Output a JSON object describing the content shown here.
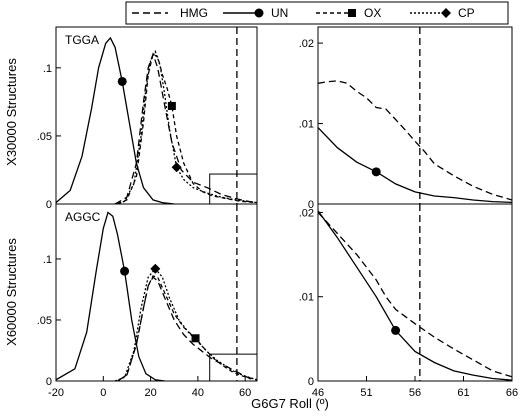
{
  "legend": [
    {
      "name": "HMG",
      "dash": "7,4",
      "marker": "none"
    },
    {
      "name": "UN",
      "dash": "",
      "marker": "circle"
    },
    {
      "name": "OX",
      "dash": "4,3",
      "marker": "square"
    },
    {
      "name": "CP",
      "dash": "2,2",
      "marker": "diamond"
    }
  ],
  "xlabel": "G6G7 Roll (º)",
  "ylabel_top": "X30000 Structures",
  "ylabel_bottom": "X60000 Structures",
  "vline_x": 56.5,
  "chart_data": [
    {
      "id": "top-left",
      "type": "line",
      "label": "TGGA",
      "xlim": [
        -20,
        65
      ],
      "ylim": [
        0,
        0.13
      ],
      "xticks": [],
      "yticks": [
        0,
        0.05,
        0.1
      ],
      "inset_box": {
        "x": [
          45,
          65
        ],
        "y": [
          0,
          0.022
        ]
      },
      "series": [
        {
          "name": "HMG",
          "marker_at": null,
          "points": [
            [
              5,
              0
            ],
            [
              10,
              0.005
            ],
            [
              14,
              0.03
            ],
            [
              17,
              0.075
            ],
            [
              19,
              0.1
            ],
            [
              21,
              0.11
            ],
            [
              23,
              0.1
            ],
            [
              26,
              0.072
            ],
            [
              29,
              0.045
            ],
            [
              33,
              0.025
            ],
            [
              38,
              0.016
            ],
            [
              44,
              0.012
            ],
            [
              50,
              0.007
            ],
            [
              56,
              0.004
            ],
            [
              61,
              0.002
            ],
            [
              65,
              0.001
            ]
          ]
        },
        {
          "name": "UN",
          "marker_at": [
            8,
            0.09
          ],
          "points": [
            [
              -20,
              0.001
            ],
            [
              -14,
              0.01
            ],
            [
              -9,
              0.035
            ],
            [
              -5,
              0.07
            ],
            [
              -2,
              0.1
            ],
            [
              1,
              0.118
            ],
            [
              3,
              0.122
            ],
            [
              5,
              0.115
            ],
            [
              8,
              0.09
            ],
            [
              11,
              0.06
            ],
            [
              14,
              0.03
            ],
            [
              17,
              0.012
            ],
            [
              21,
              0.003
            ],
            [
              25,
              0.001
            ],
            [
              30,
              0
            ]
          ]
        },
        {
          "name": "OX",
          "marker_at": [
            29,
            0.072
          ],
          "points": [
            [
              6,
              0
            ],
            [
              10,
              0.003
            ],
            [
              14,
              0.02
            ],
            [
              17,
              0.06
            ],
            [
              19,
              0.095
            ],
            [
              21,
              0.11
            ],
            [
              23,
              0.108
            ],
            [
              25,
              0.095
            ],
            [
              27,
              0.085
            ],
            [
              29,
              0.072
            ],
            [
              31,
              0.05
            ],
            [
              34,
              0.03
            ],
            [
              38,
              0.015
            ],
            [
              42,
              0.009
            ],
            [
              46,
              0.006
            ],
            [
              52,
              0.004
            ],
            [
              58,
              0.002
            ],
            [
              65,
              0.001
            ]
          ]
        },
        {
          "name": "CP",
          "marker_at": [
            31,
            0.027
          ],
          "points": [
            [
              5,
              0
            ],
            [
              9,
              0.002
            ],
            [
              13,
              0.015
            ],
            [
              16,
              0.05
            ],
            [
              18,
              0.085
            ],
            [
              20,
              0.105
            ],
            [
              22,
              0.112
            ],
            [
              24,
              0.102
            ],
            [
              26,
              0.08
            ],
            [
              28,
              0.055
            ],
            [
              31,
              0.027
            ],
            [
              34,
              0.018
            ],
            [
              38,
              0.012
            ],
            [
              44,
              0.008
            ],
            [
              50,
              0.005
            ],
            [
              56,
              0.003
            ],
            [
              61,
              0.002
            ],
            [
              65,
              0.001
            ]
          ]
        }
      ]
    },
    {
      "id": "bottom-left",
      "type": "line",
      "label": "AGGC",
      "xlim": [
        -20,
        65
      ],
      "ylim": [
        0,
        0.145
      ],
      "xticks": [
        -20,
        0,
        20,
        40,
        60
      ],
      "yticks": [
        0,
        0.05,
        0.1
      ],
      "inset_box": {
        "x": [
          45,
          65
        ],
        "y": [
          0,
          0.022
        ]
      },
      "series": [
        {
          "name": "HMG",
          "marker_at": null,
          "points": [
            [
              6,
              0
            ],
            [
              10,
              0.005
            ],
            [
              14,
              0.03
            ],
            [
              17,
              0.06
            ],
            [
              19,
              0.078
            ],
            [
              21,
              0.085
            ],
            [
              23,
              0.082
            ],
            [
              26,
              0.068
            ],
            [
              30,
              0.05
            ],
            [
              34,
              0.038
            ],
            [
              38,
              0.03
            ],
            [
              42,
              0.024
            ],
            [
              46,
              0.018
            ],
            [
              50,
              0.014
            ],
            [
              54,
              0.01
            ],
            [
              58,
              0.006
            ],
            [
              62,
              0.002
            ],
            [
              65,
              0.001
            ]
          ]
        },
        {
          "name": "UN",
          "marker_at": [
            9,
            0.09
          ],
          "points": [
            [
              -20,
              0.001
            ],
            [
              -12,
              0.01
            ],
            [
              -7,
              0.04
            ],
            [
              -3,
              0.09
            ],
            [
              0,
              0.125
            ],
            [
              2,
              0.138
            ],
            [
              4,
              0.135
            ],
            [
              6,
              0.12
            ],
            [
              9,
              0.09
            ],
            [
              12,
              0.05
            ],
            [
              15,
              0.02
            ],
            [
              18,
              0.006
            ],
            [
              22,
              0.001
            ],
            [
              26,
              0
            ]
          ]
        },
        {
          "name": "OX",
          "marker_at": [
            39,
            0.035
          ],
          "points": [
            [
              6,
              0
            ],
            [
              10,
              0.005
            ],
            [
              14,
              0.03
            ],
            [
              17,
              0.06
            ],
            [
              19,
              0.078
            ],
            [
              21,
              0.086
            ],
            [
              23,
              0.085
            ],
            [
              26,
              0.072
            ],
            [
              30,
              0.055
            ],
            [
              34,
              0.044
            ],
            [
              39,
              0.035
            ],
            [
              43,
              0.026
            ],
            [
              47,
              0.018
            ],
            [
              51,
              0.012
            ],
            [
              55,
              0.007
            ],
            [
              59,
              0.004
            ],
            [
              65,
              0.001
            ]
          ]
        },
        {
          "name": "CP",
          "marker_at": [
            22,
            0.092
          ],
          "points": [
            [
              5,
              0
            ],
            [
              9,
              0.003
            ],
            [
              13,
              0.025
            ],
            [
              16,
              0.06
            ],
            [
              19,
              0.085
            ],
            [
              22,
              0.092
            ],
            [
              25,
              0.085
            ],
            [
              28,
              0.068
            ],
            [
              32,
              0.05
            ],
            [
              36,
              0.04
            ],
            [
              40,
              0.032
            ],
            [
              44,
              0.024
            ],
            [
              48,
              0.017
            ],
            [
              52,
              0.012
            ],
            [
              56,
              0.007
            ],
            [
              60,
              0.004
            ],
            [
              65,
              0.001
            ]
          ]
        }
      ]
    },
    {
      "id": "top-right",
      "type": "line",
      "label": "",
      "xlim": [
        46,
        66
      ],
      "ylim": [
        0,
        0.022
      ],
      "xticks": [],
      "yticks": [
        0,
        0.01,
        0.02
      ],
      "inset_box": null,
      "series": [
        {
          "name": "HMG",
          "marker_at": null,
          "points": [
            [
              46,
              0.015
            ],
            [
              47,
              0.0152
            ],
            [
              48,
              0.0153
            ],
            [
              49,
              0.015
            ],
            [
              50,
              0.014
            ],
            [
              51,
              0.0132
            ],
            [
              52,
              0.012
            ],
            [
              53,
              0.0118
            ],
            [
              54,
              0.0105
            ],
            [
              55,
              0.0092
            ],
            [
              56,
              0.0078
            ],
            [
              57,
              0.0065
            ],
            [
              58,
              0.005
            ],
            [
              60,
              0.0035
            ],
            [
              62,
              0.0022
            ],
            [
              64,
              0.0012
            ],
            [
              66,
              0.0005
            ]
          ]
        },
        {
          "name": "UN",
          "marker_at": [
            52,
            0.004
          ],
          "points": [
            [
              46,
              0.0095
            ],
            [
              48,
              0.007
            ],
            [
              50,
              0.0052
            ],
            [
              52,
              0.004
            ],
            [
              54,
              0.0025
            ],
            [
              56,
              0.0015
            ],
            [
              58,
              0.001
            ],
            [
              60,
              0.0008
            ],
            [
              62,
              0.0005
            ],
            [
              64,
              0.0003
            ],
            [
              66,
              0.0002
            ]
          ]
        }
      ]
    },
    {
      "id": "bottom-right",
      "type": "line",
      "label": "",
      "xlim": [
        46,
        66
      ],
      "ylim": [
        0,
        0.021
      ],
      "xticks": [
        46,
        51,
        56,
        61,
        66
      ],
      "yticks": [
        0,
        0.01,
        0.02
      ],
      "inset_box": null,
      "series": [
        {
          "name": "HMG",
          "marker_at": null,
          "points": [
            [
              46,
              0.02
            ],
            [
              48,
              0.0175
            ],
            [
              50,
              0.015
            ],
            [
              52,
              0.012
            ],
            [
              53,
              0.01
            ],
            [
              54,
              0.0085
            ],
            [
              56,
              0.0068
            ],
            [
              58,
              0.0052
            ],
            [
              60,
              0.0038
            ],
            [
              62,
              0.0025
            ],
            [
              64,
              0.0012
            ],
            [
              66,
              0.0005
            ]
          ]
        },
        {
          "name": "UN",
          "marker_at": [
            54,
            0.006
          ],
          "points": [
            [
              46,
              0.0202
            ],
            [
              48,
              0.017
            ],
            [
              50,
              0.0135
            ],
            [
              52,
              0.01
            ],
            [
              54,
              0.006
            ],
            [
              56,
              0.0035
            ],
            [
              58,
              0.0022
            ],
            [
              60,
              0.0012
            ],
            [
              62,
              0.0007
            ],
            [
              64,
              0.0003
            ],
            [
              66,
              0.0001
            ]
          ]
        }
      ]
    }
  ]
}
